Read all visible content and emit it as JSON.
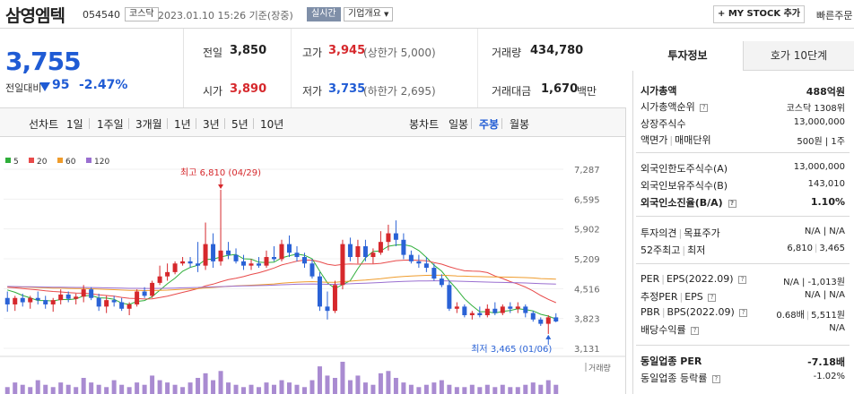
{
  "header": {
    "stock_name": "삼영엠텍",
    "stock_code": "054540",
    "market": "코스닥",
    "datetime": "2023.01.10 15:26 기준(장중)",
    "realtime_label": "실시간",
    "overview_label": "기업개요",
    "mystock_label": "MY STOCK 추가",
    "quick_order_label": "빠른주문"
  },
  "price": {
    "current": "3,755",
    "change_label": "전일대비",
    "change_value": "95",
    "change_rate": "-2.47%"
  },
  "stats": {
    "prev_close_label": "전일",
    "prev_close": "3,850",
    "high_label": "고가",
    "high": "3,945",
    "upper_limit": "(상한가 5,000)",
    "volume_label": "거래량",
    "volume": "434,780",
    "open_label": "시가",
    "open": "3,890",
    "low_label": "저가",
    "low": "3,735",
    "lower_limit": "(하한가 2,695)",
    "amount_label": "거래대금",
    "amount": "1,670",
    "amount_unit": "백만"
  },
  "periods": {
    "line_chart_label": "선차트",
    "line_items": [
      "1일",
      "1주일",
      "3개월",
      "1년",
      "3년",
      "5년",
      "10년"
    ],
    "candle_chart_label": "봉차트",
    "candle_items": [
      "일봉",
      "주봉",
      "월봉"
    ],
    "active_candle": "주봉"
  },
  "chart_data": {
    "type": "candlestick",
    "legend": [
      {
        "name": "5",
        "color": "#2fae3a"
      },
      {
        "name": "20",
        "color": "#e84a4a"
      },
      {
        "name": "60",
        "color": "#ef9c2c"
      },
      {
        "name": "120",
        "color": "#9a6fd0"
      }
    ],
    "y_ticks": [
      "7,287",
      "6,595",
      "5,902",
      "5,209",
      "4,516",
      "3,823",
      "3,131"
    ],
    "ylim": [
      3131,
      7287
    ],
    "max_annotation": "최고 6,810 (04/29)",
    "min_annotation": "최저 3,465 (01/06)",
    "volume_label": "거래량",
    "up_color": "#d6282c",
    "down_color": "#2a62d6",
    "volume_color": "#a98bd1",
    "candles": [
      {
        "o": 4300,
        "h": 4450,
        "l": 3980,
        "c": 4150
      },
      {
        "o": 4150,
        "h": 4350,
        "l": 4000,
        "c": 4300
      },
      {
        "o": 4300,
        "h": 4400,
        "l": 4100,
        "c": 4200
      },
      {
        "o": 4200,
        "h": 4350,
        "l": 4050,
        "c": 4300
      },
      {
        "o": 4300,
        "h": 4450,
        "l": 4150,
        "c": 4250
      },
      {
        "o": 4250,
        "h": 4350,
        "l": 4050,
        "c": 4150
      },
      {
        "o": 4150,
        "h": 4300,
        "l": 3980,
        "c": 4250
      },
      {
        "o": 4250,
        "h": 4500,
        "l": 4150,
        "c": 4380
      },
      {
        "o": 4380,
        "h": 4450,
        "l": 4200,
        "c": 4280
      },
      {
        "o": 4280,
        "h": 4400,
        "l": 4150,
        "c": 4330
      },
      {
        "o": 4330,
        "h": 4600,
        "l": 4200,
        "c": 4500
      },
      {
        "o": 4500,
        "h": 4550,
        "l": 4250,
        "c": 4300
      },
      {
        "o": 4300,
        "h": 4400,
        "l": 4000,
        "c": 4100
      },
      {
        "o": 4100,
        "h": 4350,
        "l": 3950,
        "c": 4250
      },
      {
        "o": 4250,
        "h": 4350,
        "l": 4100,
        "c": 4200
      },
      {
        "o": 4200,
        "h": 4300,
        "l": 4000,
        "c": 4050
      },
      {
        "o": 4050,
        "h": 4200,
        "l": 3900,
        "c": 4150
      },
      {
        "o": 4150,
        "h": 4500,
        "l": 4100,
        "c": 4450
      },
      {
        "o": 4450,
        "h": 4550,
        "l": 4300,
        "c": 4350
      },
      {
        "o": 4350,
        "h": 4700,
        "l": 4300,
        "c": 4650
      },
      {
        "o": 4650,
        "h": 5050,
        "l": 4600,
        "c": 4800
      },
      {
        "o": 4800,
        "h": 5100,
        "l": 4700,
        "c": 4900
      },
      {
        "o": 4900,
        "h": 5150,
        "l": 4850,
        "c": 5100
      },
      {
        "o": 5100,
        "h": 5250,
        "l": 5050,
        "c": 5150
      },
      {
        "o": 5150,
        "h": 5250,
        "l": 5000,
        "c": 5100
      },
      {
        "o": 5100,
        "h": 5600,
        "l": 4900,
        "c": 5050
      },
      {
        "o": 5050,
        "h": 6050,
        "l": 4950,
        "c": 5550
      },
      {
        "o": 5550,
        "h": 5800,
        "l": 5000,
        "c": 5150
      },
      {
        "o": 5150,
        "h": 6810,
        "l": 5050,
        "c": 5400
      },
      {
        "o": 5400,
        "h": 5600,
        "l": 5200,
        "c": 5300
      },
      {
        "o": 5300,
        "h": 5450,
        "l": 5100,
        "c": 5150
      },
      {
        "o": 5150,
        "h": 5300,
        "l": 4950,
        "c": 5050
      },
      {
        "o": 5050,
        "h": 5200,
        "l": 4950,
        "c": 5100
      },
      {
        "o": 5100,
        "h": 5250,
        "l": 5000,
        "c": 5050
      },
      {
        "o": 5050,
        "h": 5400,
        "l": 5000,
        "c": 5250
      },
      {
        "o": 5250,
        "h": 5500,
        "l": 5150,
        "c": 5200
      },
      {
        "o": 5200,
        "h": 5650,
        "l": 5150,
        "c": 5550
      },
      {
        "o": 5550,
        "h": 5750,
        "l": 5250,
        "c": 5350
      },
      {
        "o": 5350,
        "h": 5500,
        "l": 5150,
        "c": 5250
      },
      {
        "o": 5250,
        "h": 5350,
        "l": 5000,
        "c": 5100
      },
      {
        "o": 5100,
        "h": 5200,
        "l": 4750,
        "c": 4800
      },
      {
        "o": 4800,
        "h": 4900,
        "l": 4000,
        "c": 4100
      },
      {
        "o": 4100,
        "h": 4450,
        "l": 3800,
        "c": 4000
      },
      {
        "o": 4000,
        "h": 4700,
        "l": 3950,
        "c": 4600
      },
      {
        "o": 4600,
        "h": 5650,
        "l": 4500,
        "c": 5550
      },
      {
        "o": 5550,
        "h": 5700,
        "l": 5150,
        "c": 5250
      },
      {
        "o": 5250,
        "h": 5650,
        "l": 5100,
        "c": 5500
      },
      {
        "o": 5500,
        "h": 5650,
        "l": 5150,
        "c": 5250
      },
      {
        "o": 5250,
        "h": 5450,
        "l": 5100,
        "c": 5350
      },
      {
        "o": 5350,
        "h": 5850,
        "l": 5300,
        "c": 5600
      },
      {
        "o": 5600,
        "h": 6000,
        "l": 5400,
        "c": 5800
      },
      {
        "o": 5800,
        "h": 6100,
        "l": 5500,
        "c": 5650
      },
      {
        "o": 5650,
        "h": 5800,
        "l": 5200,
        "c": 5300
      },
      {
        "o": 5300,
        "h": 5400,
        "l": 5100,
        "c": 5150
      },
      {
        "o": 5150,
        "h": 5300,
        "l": 5000,
        "c": 5100
      },
      {
        "o": 5100,
        "h": 5250,
        "l": 4900,
        "c": 5000
      },
      {
        "o": 5000,
        "h": 5100,
        "l": 4700,
        "c": 4750
      },
      {
        "o": 4750,
        "h": 4850,
        "l": 4550,
        "c": 4600
      },
      {
        "o": 4600,
        "h": 4700,
        "l": 4000,
        "c": 4050
      },
      {
        "o": 4050,
        "h": 4200,
        "l": 3950,
        "c": 4100
      },
      {
        "o": 4100,
        "h": 4150,
        "l": 3850,
        "c": 3900
      },
      {
        "o": 3900,
        "h": 4000,
        "l": 3800,
        "c": 3950
      },
      {
        "o": 3950,
        "h": 4100,
        "l": 3850,
        "c": 3900
      },
      {
        "o": 3900,
        "h": 4150,
        "l": 3850,
        "c": 4050
      },
      {
        "o": 4050,
        "h": 4200,
        "l": 3900,
        "c": 3950
      },
      {
        "o": 3950,
        "h": 4150,
        "l": 3900,
        "c": 4100
      },
      {
        "o": 4100,
        "h": 4200,
        "l": 3950,
        "c": 4050
      },
      {
        "o": 4050,
        "h": 4200,
        "l": 3950,
        "c": 4100
      },
      {
        "o": 4100,
        "h": 4150,
        "l": 3850,
        "c": 3950
      },
      {
        "o": 3950,
        "h": 4000,
        "l": 3750,
        "c": 3800
      },
      {
        "o": 3800,
        "h": 3850,
        "l": 3650,
        "c": 3700
      },
      {
        "o": 3700,
        "h": 3900,
        "l": 3465,
        "c": 3850
      },
      {
        "o": 3850,
        "h": 3945,
        "l": 3735,
        "c": 3755
      }
    ],
    "volume_heights": [
      3,
      5,
      4,
      3,
      6,
      4,
      3,
      5,
      4,
      3,
      7,
      5,
      4,
      3,
      6,
      4,
      3,
      5,
      4,
      8,
      6,
      5,
      4,
      3,
      5,
      7,
      9,
      6,
      10,
      5,
      4,
      3,
      4,
      3,
      5,
      4,
      6,
      5,
      4,
      3,
      6,
      12,
      8,
      7,
      14,
      6,
      8,
      5,
      4,
      9,
      10,
      7,
      5,
      4,
      3,
      4,
      5,
      6,
      4,
      3,
      3,
      4,
      3,
      4,
      3,
      4,
      3,
      3,
      4,
      5,
      4,
      6,
      4
    ]
  },
  "invest_tabs": [
    "투자정보",
    "호가 10단계"
  ],
  "invest_info": {
    "market_cap_label": "시가총액",
    "market_cap": "488억원",
    "market_cap_rank_label": "시가총액순위",
    "market_cap_rank": "코스닥 1308위",
    "shares_label": "상장주식수",
    "shares": "13,000,000",
    "par_label": "액면가",
    "trade_unit_label": "매매단위",
    "par_unit_value": "500원 | 1주",
    "foreign_limit_label": "외국인한도주식수(A)",
    "foreign_limit": "13,000,000",
    "foreign_hold_label": "외국인보유주식수(B)",
    "foreign_hold": "143,010",
    "foreign_ratio_label": "외국인소진율(B/A)",
    "foreign_ratio": "1.10%",
    "opinion_label": "투자의견",
    "target_label": "목표주가",
    "opinion_target": "N/A | N/A",
    "week52_label": "52주최고",
    "week52_low_label": "최저",
    "week52_high": "6,810",
    "week52_low": "3,465",
    "per_label": "PER",
    "eps_label": "EPS(2022.09)",
    "per_eps": "N/A | -1,013원",
    "est_per_label": "추정PER",
    "est_eps_label": "EPS",
    "est_per_eps": "N/A | N/A",
    "pbr_label": "PBR",
    "bps_label": "BPS(2022.09)",
    "pbr": "0.68배",
    "bps": "5,511원",
    "dividend_label": "배당수익률",
    "dividend": "N/A",
    "sector_per_label": "동일업종 PER",
    "sector_per": "-7.18배",
    "sector_rate_label": "동일업종 등락률",
    "sector_rate": "-1.02%"
  }
}
